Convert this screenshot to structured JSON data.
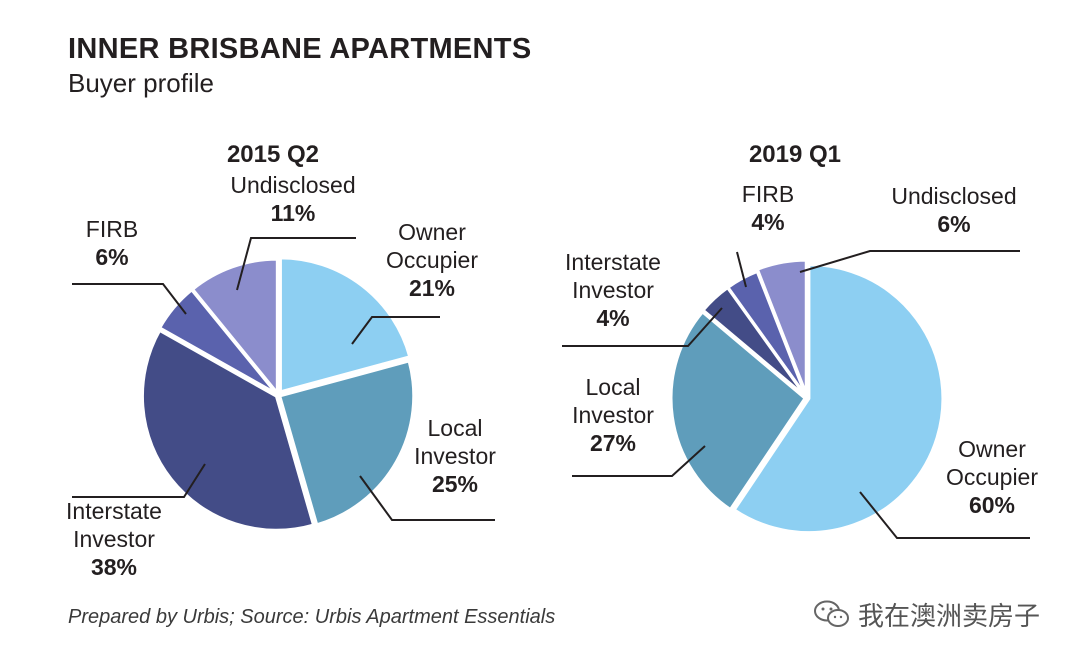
{
  "header": {
    "title": "INNER BRISBANE APARTMENTS",
    "subtitle": "Buyer profile"
  },
  "footer": {
    "source": "Prepared by Urbis; Source: Urbis Apartment Essentials"
  },
  "watermark": {
    "text": "我在澳洲卖房子",
    "icon": "wechat-logo-icon"
  },
  "colors": {
    "owner_occupier": "#8dcff2",
    "local_investor": "#5f9dbb",
    "interstate_investor": "#434c87",
    "firb": "#5a62ad",
    "undisclosed": "#8b8dcc",
    "leader_lines": "#231f20"
  },
  "chart_data": [
    {
      "type": "pie",
      "title": "2015 Q2",
      "slices": [
        {
          "label_lines": [
            "Owner",
            "Occupier"
          ],
          "value": 21,
          "value_label": "21%",
          "color": "#8dcff2"
        },
        {
          "label_lines": [
            "Local",
            "Investor"
          ],
          "value": 25,
          "value_label": "25%",
          "color": "#5f9dbb"
        },
        {
          "label_lines": [
            "Interstate",
            "Investor"
          ],
          "value": 38,
          "value_label": "38%",
          "color": "#434c87"
        },
        {
          "label_lines": [
            "FIRB"
          ],
          "value": 6,
          "value_label": "6%",
          "color": "#5a62ad"
        },
        {
          "label_lines": [
            "Undisclosed"
          ],
          "value": 11,
          "value_label": "11%",
          "color": "#8b8dcc"
        }
      ]
    },
    {
      "type": "pie",
      "title": "2019 Q1",
      "slices": [
        {
          "label_lines": [
            "Owner",
            "Occupier"
          ],
          "value": 60,
          "value_label": "60%",
          "color": "#8dcff2"
        },
        {
          "label_lines": [
            "Local",
            "Investor"
          ],
          "value": 27,
          "value_label": "27%",
          "color": "#5f9dbb"
        },
        {
          "label_lines": [
            "Interstate",
            "Investor"
          ],
          "value": 4,
          "value_label": "4%",
          "color": "#434c87"
        },
        {
          "label_lines": [
            "FIRB"
          ],
          "value": 4,
          "value_label": "4%",
          "color": "#5a62ad"
        },
        {
          "label_lines": [
            "Undisclosed"
          ],
          "value": 6,
          "value_label": "6%",
          "color": "#8b8dcc"
        }
      ]
    }
  ]
}
